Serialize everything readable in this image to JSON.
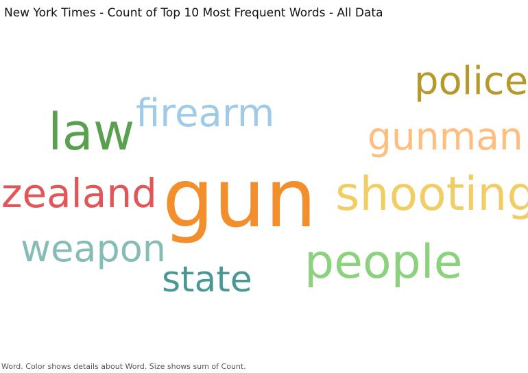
{
  "header": {
    "title": "New York Times - Count of Top 10 Most Frequent Words - All Data"
  },
  "chart_data": {
    "type": "word-cloud",
    "title": "New York Times - Count of Top 10 Most Frequent Words - All Data",
    "words": [
      {
        "word": "gun",
        "color": "#f28e2b"
      },
      {
        "word": "law",
        "color": "#59a14f"
      },
      {
        "word": "firearm",
        "color": "#a0cbe8"
      },
      {
        "word": "police",
        "color": "#b6992d"
      },
      {
        "word": "gunman",
        "color": "#ffbe7d"
      },
      {
        "word": "shooting",
        "color": "#f1ce63"
      },
      {
        "word": "zealand",
        "color": "#e15759"
      },
      {
        "word": "weapon",
        "color": "#86bcb6"
      },
      {
        "word": "people",
        "color": "#8cd17d"
      },
      {
        "word": "state",
        "color": "#499894"
      }
    ]
  },
  "footer": {
    "caption": "Word.  Color shows details about Word.  Size shows sum of Count."
  }
}
